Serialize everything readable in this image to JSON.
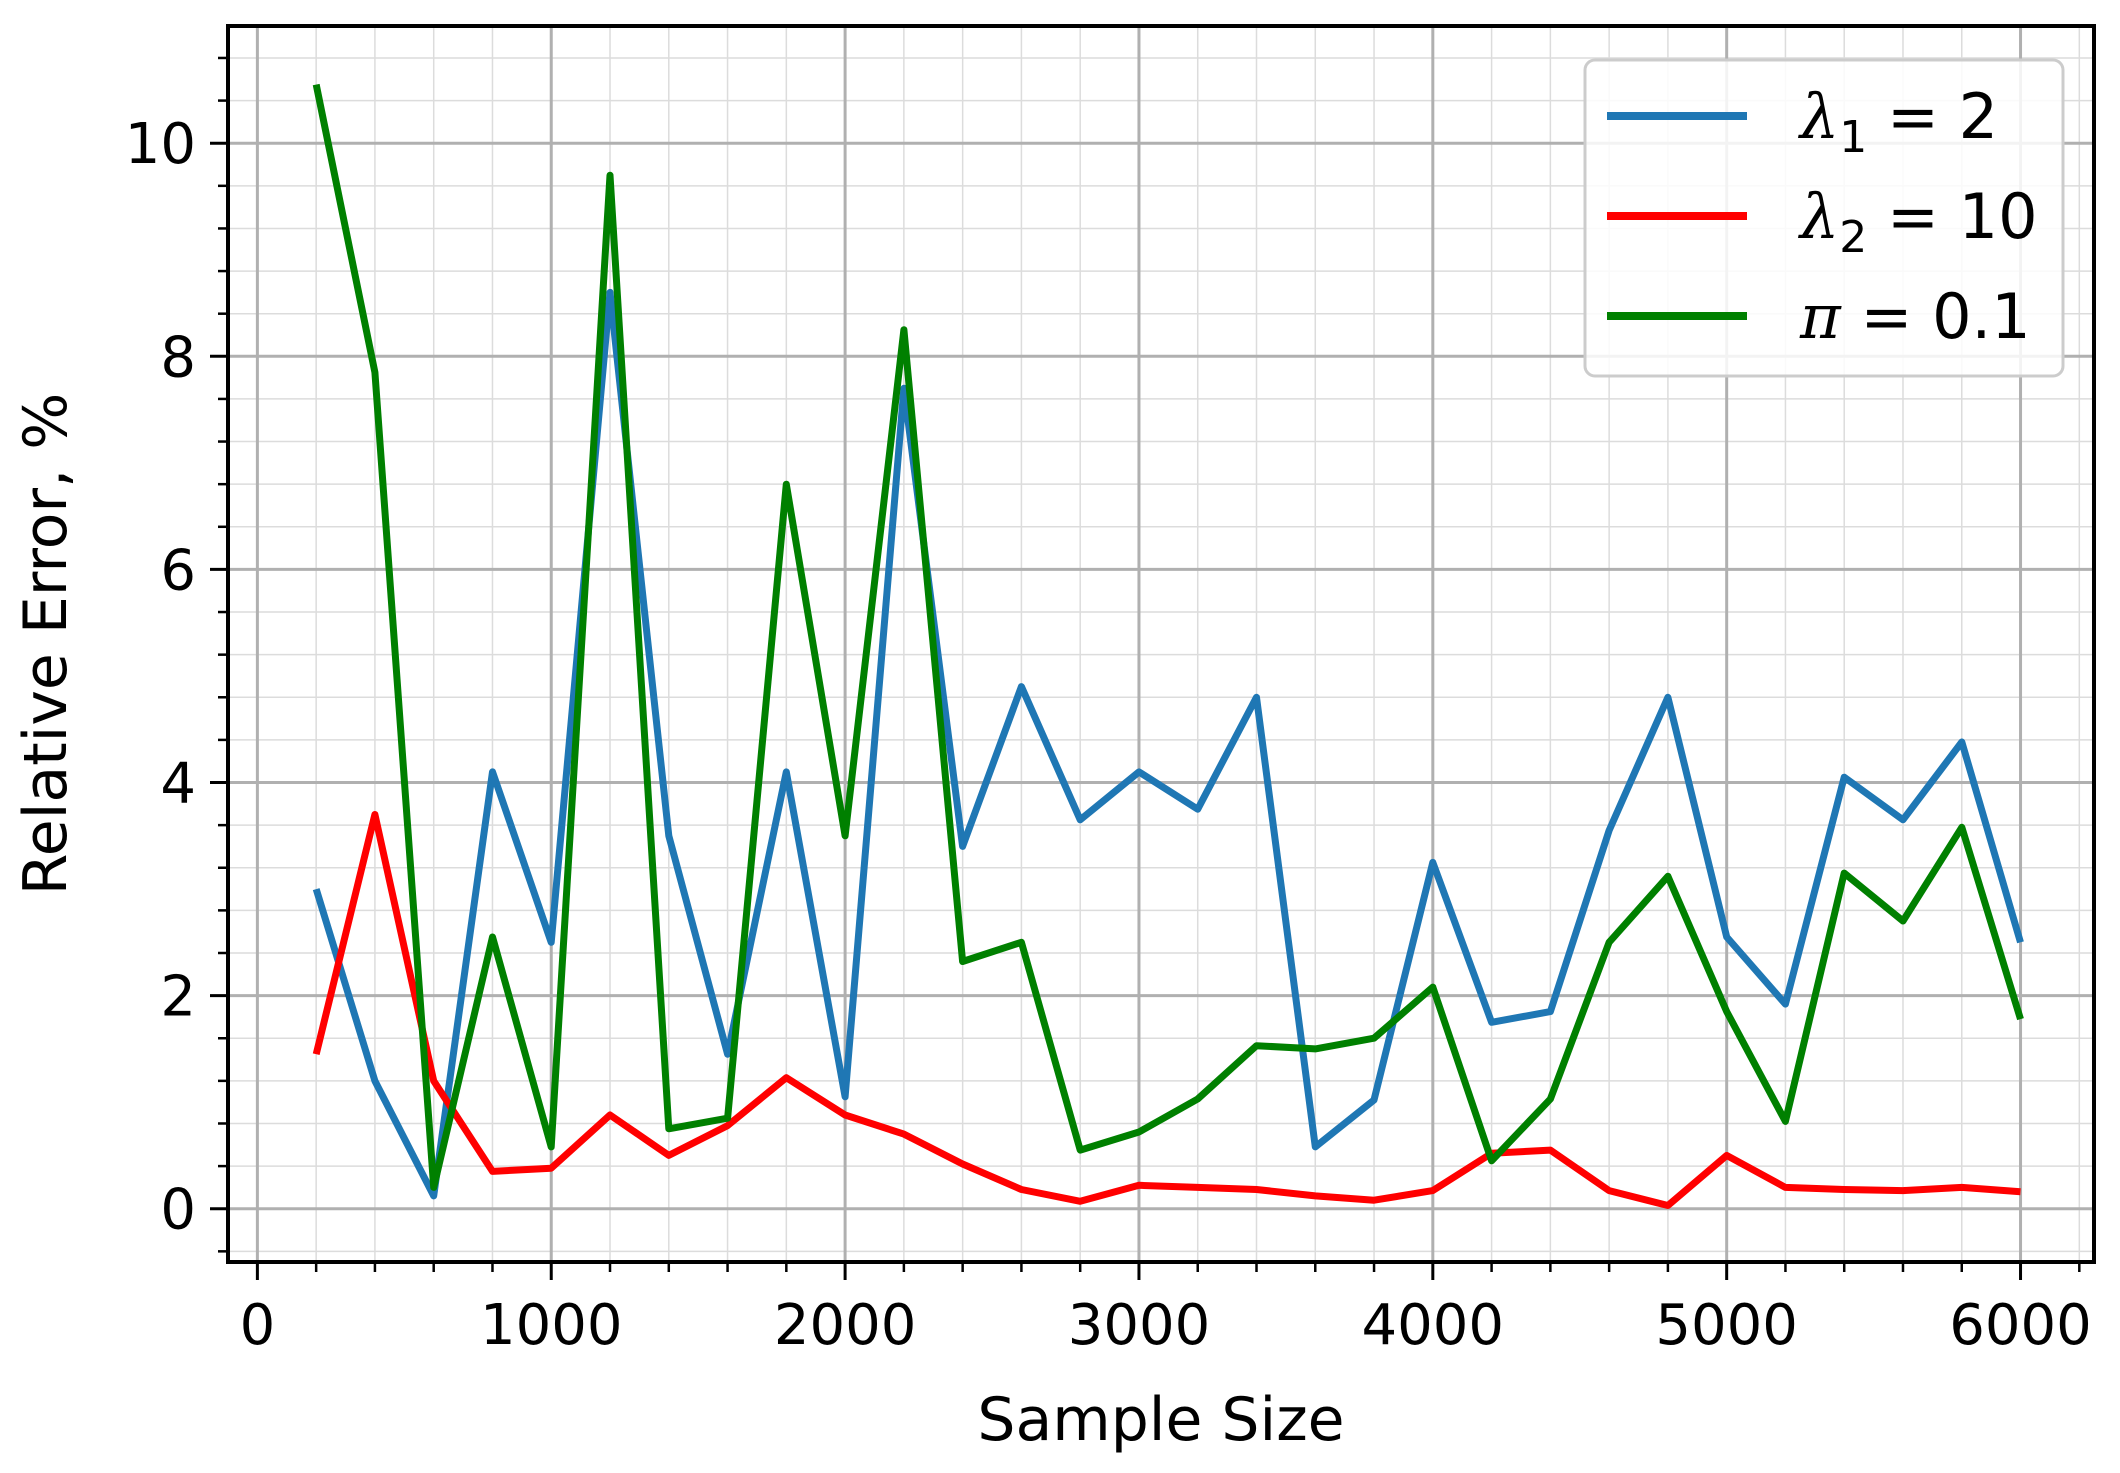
{
  "chart_data": {
    "type": "line",
    "title": "",
    "xlabel": "Sample Size",
    "ylabel": "Relative Error, %",
    "xlim": [
      -100,
      6250
    ],
    "ylim": [
      -0.5,
      11.1
    ],
    "x_ticks": [
      "0",
      "1000",
      "2000",
      "3000",
      "4000",
      "5000",
      "6000"
    ],
    "y_ticks": [
      "0",
      "2",
      "4",
      "6",
      "8",
      "10"
    ],
    "grid": true,
    "legend_position": "top-right",
    "x": [
      200,
      400,
      600,
      800,
      1000,
      1200,
      1400,
      1600,
      1800,
      2000,
      2200,
      2400,
      2600,
      2800,
      3000,
      3200,
      3400,
      3600,
      3800,
      4000,
      4200,
      4400,
      4600,
      4800,
      5000,
      5200,
      5400,
      5600,
      5800,
      6000
    ],
    "series": [
      {
        "name_main": "λ",
        "name_sub": "1",
        "name_rest": " = 2",
        "color": "#1f77b4",
        "values": [
          3.0,
          1.2,
          0.12,
          4.1,
          2.5,
          8.6,
          3.5,
          1.45,
          4.1,
          1.05,
          7.7,
          3.4,
          4.9,
          3.65,
          4.1,
          3.75,
          4.8,
          0.58,
          1.02,
          3.25,
          1.75,
          1.85,
          3.55,
          4.8,
          2.55,
          1.92,
          4.05,
          3.65,
          4.38,
          2.5
        ]
      },
      {
        "name_main": "λ",
        "name_sub": "2",
        "name_rest": " = 10",
        "color": "#ff0000",
        "values": [
          1.45,
          3.7,
          1.2,
          0.35,
          0.38,
          0.88,
          0.5,
          0.78,
          1.23,
          0.88,
          0.7,
          0.42,
          0.18,
          0.07,
          0.22,
          0.2,
          0.18,
          0.12,
          0.08,
          0.17,
          0.52,
          0.55,
          0.17,
          0.03,
          0.5,
          0.2,
          0.18,
          0.17,
          0.2,
          0.16
        ]
      },
      {
        "name_main": "π",
        "name_sub": "",
        "name_rest": " = 0.1",
        "color": "#008000",
        "values": [
          10.55,
          7.85,
          0.2,
          2.55,
          0.58,
          9.7,
          0.75,
          0.85,
          6.8,
          3.5,
          8.25,
          2.32,
          2.5,
          0.55,
          0.72,
          1.03,
          1.53,
          1.5,
          1.6,
          2.08,
          0.45,
          1.03,
          2.5,
          3.12,
          1.85,
          0.82,
          3.15,
          2.7,
          3.58,
          1.78
        ]
      }
    ]
  }
}
